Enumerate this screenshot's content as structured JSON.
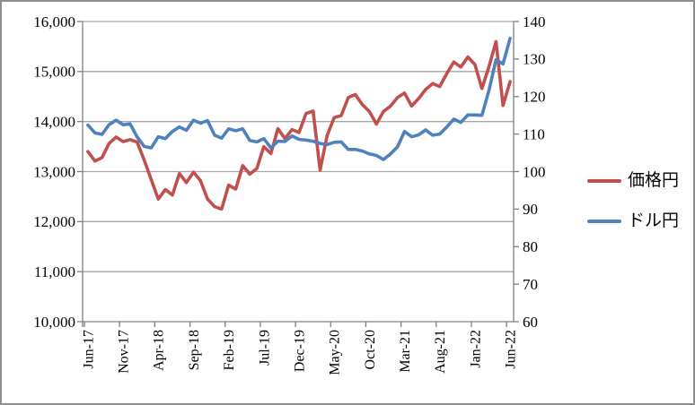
{
  "chart_data": {
    "type": "line",
    "title": "",
    "grid": true,
    "legend_position": "right",
    "x_tick_labels": [
      "Jun-17",
      "Nov-17",
      "Apr-18",
      "Sep-18",
      "Feb-19",
      "Jul-19",
      "Dec-19",
      "May-20",
      "Oct-20",
      "Mar-21",
      "Aug-21",
      "Jan-22",
      "Jun-22"
    ],
    "x_tick_interval_months": 5,
    "n_points": 61,
    "left_axis": {
      "min": 10000,
      "max": 16000,
      "step": 1000,
      "tick_labels": [
        "16,000",
        "15,000",
        "14,000",
        "13,000",
        "12,000",
        "11,000",
        "10,000"
      ]
    },
    "right_axis": {
      "min": 60,
      "max": 140,
      "step": 10,
      "tick_labels": [
        "140",
        "130",
        "120",
        "110",
        "100",
        "90",
        "80",
        "70",
        "60"
      ]
    },
    "series": [
      {
        "name": "価格円",
        "axis": "left",
        "color": "#C0504D",
        "values": [
          13400,
          13210,
          13280,
          13560,
          13690,
          13600,
          13640,
          13590,
          13230,
          12840,
          12450,
          12640,
          12530,
          12960,
          12780,
          12990,
          12820,
          12450,
          12300,
          12250,
          12730,
          12650,
          13120,
          12950,
          13060,
          13500,
          13360,
          13860,
          13660,
          13840,
          13780,
          14160,
          14210,
          13030,
          13720,
          14080,
          14120,
          14480,
          14540,
          14340,
          14200,
          13950,
          14200,
          14310,
          14480,
          14570,
          14310,
          14460,
          14640,
          14760,
          14700,
          14960,
          15190,
          15090,
          15290,
          15140,
          14660,
          15100,
          15600,
          14320,
          14800
        ]
      },
      {
        "name": "ドル円",
        "axis": "right",
        "color": "#4F81BD",
        "values": [
          112.4,
          110.3,
          109.9,
          112.5,
          113.7,
          112.5,
          112.7,
          109.2,
          106.7,
          106.3,
          109.3,
          108.8,
          110.7,
          111.9,
          111.0,
          113.7,
          112.9,
          113.6,
          109.7,
          108.9,
          111.4,
          110.9,
          111.4,
          108.3,
          107.9,
          108.8,
          106.3,
          108.1,
          108.0,
          109.5,
          108.6,
          108.4,
          108.1,
          107.5,
          107.2,
          107.8,
          107.9,
          105.9,
          105.9,
          105.5,
          104.7,
          104.3,
          103.2,
          104.7,
          106.6,
          110.7,
          109.3,
          109.8,
          111.1,
          109.7,
          110.0,
          111.9,
          114.0,
          113.1,
          115.1,
          115.1,
          115.0,
          121.7,
          129.8,
          128.7,
          135.5
        ]
      }
    ]
  },
  "legend": {
    "items": [
      {
        "label": "価格円",
        "color": "#C0504D"
      },
      {
        "label": "ドル円",
        "color": "#4F81BD"
      }
    ]
  },
  "colors": {
    "gridline": "#a6a6a6",
    "axis": "#808080",
    "text": "#000000",
    "background": "#ffffff"
  }
}
